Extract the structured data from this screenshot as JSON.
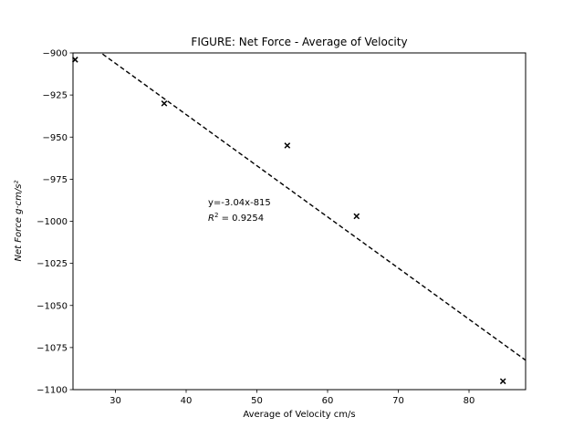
{
  "chart_data": {
    "type": "scatter",
    "title": "FIGURE: Net Force - Average of Velocity",
    "xlabel": "Average of Velocity cm/s",
    "ylabel": "Net Force g·cm/s²",
    "xlim": [
      24,
      88
    ],
    "ylim": [
      -1100,
      -900
    ],
    "xticks": [
      30,
      40,
      50,
      60,
      70,
      80
    ],
    "yticks": [
      -900,
      -925,
      -950,
      -975,
      -1000,
      -1025,
      -1050,
      -1075,
      -1100
    ],
    "xtick_labels": [
      "30",
      "40",
      "50",
      "60",
      "70",
      "80"
    ],
    "ytick_labels": [
      "−900",
      "−925",
      "−950",
      "−975",
      "−1000",
      "−1025",
      "−1050",
      "−1075",
      "−1100"
    ],
    "series": [
      {
        "marker": "x",
        "color": "#000000",
        "points": [
          {
            "x": 24.3,
            "y": -904
          },
          {
            "x": 36.9,
            "y": -930
          },
          {
            "x": 54.3,
            "y": -955
          },
          {
            "x": 64.1,
            "y": -997
          },
          {
            "x": 84.8,
            "y": -1095
          }
        ]
      }
    ],
    "fit_line": {
      "slope": -3.04,
      "intercept": -815,
      "style": "dashed",
      "color": "#000000"
    },
    "annotations": {
      "equation": "y=-3.04x-815",
      "r2_prefix": "R",
      "r2_sup": "2",
      "r2_value": " = 0.9254"
    },
    "grid": false,
    "legend": "none"
  }
}
